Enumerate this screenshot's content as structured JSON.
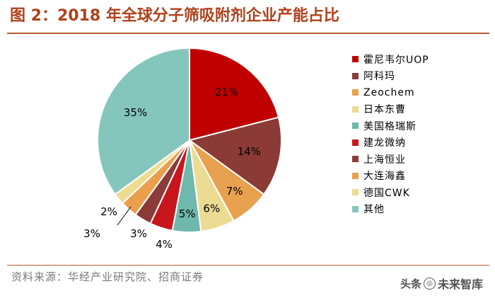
{
  "title": "图 2：2018 年全球分子筛吸附剂企业产能占比",
  "source": "资料来源：华经产业研究院、招商证券",
  "watermark": {
    "brand": "头条",
    "name": "未来智库"
  },
  "chart_data": {
    "type": "pie",
    "title": "图 2：2018 年全球分子筛吸附剂企业产能占比",
    "start_angle": "12 o'clock",
    "direction": "clockwise",
    "legend_position": "right",
    "categories": [
      "霍尼韦尔UOP",
      "阿科玛",
      "Zeochem",
      "日本东曹",
      "美国格瑞斯",
      "建龙微纳",
      "上海恒业",
      "大连海鑫",
      "德国CWK",
      "其他"
    ],
    "values": [
      21,
      14,
      7,
      6,
      5,
      4,
      3,
      3,
      2,
      35
    ],
    "labels": [
      "21%",
      "14%",
      "7%",
      "6%",
      "5%",
      "4%",
      "3%",
      "3%",
      "2%",
      "35%"
    ],
    "colors": [
      "#c00000",
      "#8b3a36",
      "#e8a14f",
      "#ecdc93",
      "#6fb8ad",
      "#c8161d",
      "#8c3b39",
      "#eb9f4c",
      "#eddc90",
      "#84c6bc"
    ]
  }
}
